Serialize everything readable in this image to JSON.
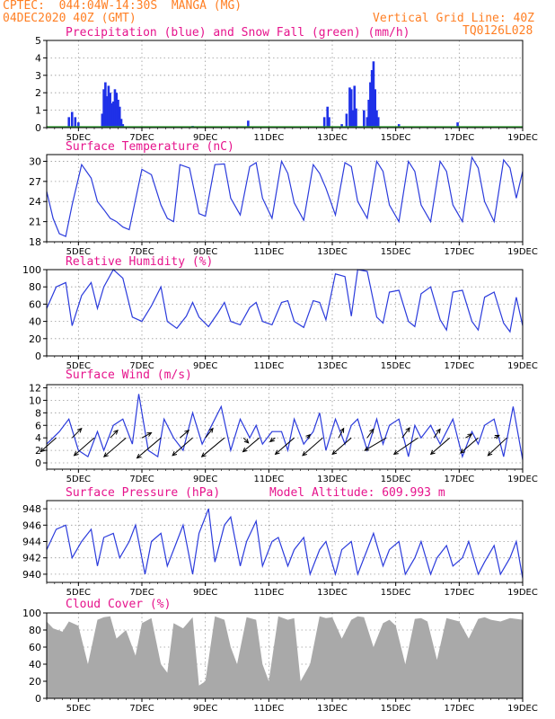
{
  "header": {
    "line1_left": "CPTEC:  044:04W-14:30S  MANGA (MG)",
    "line2_left": "04DEC2020 40Z (GMT)",
    "line2_right": "Vertical Grid Line: 40Z",
    "code": "TQ0126L028"
  },
  "x_axis": {
    "ticks": [
      "5DEC",
      "7DEC",
      "9DEC",
      "11DEC",
      "13DEC",
      "15DEC",
      "17DEC",
      "19DEC"
    ]
  },
  "colors": {
    "line": "#2b3bdc",
    "precip": "#1f31e8",
    "snow": "#2ca02c",
    "title": "#e6138c",
    "header": "#ff7f24",
    "cloud": "#a9a9a9",
    "grid": "#9a9a9a"
  },
  "chart_data": [
    {
      "type": "bar",
      "title": "Precipitation (blue) and Snow Fall (green) (mm/h)",
      "ylim": [
        0,
        5
      ],
      "yticks": [
        0,
        1,
        2,
        3,
        4,
        5
      ],
      "series": [
        {
          "name": "Precipitation",
          "color": "#1f31e8",
          "x": [
            4.7,
            4.8,
            4.9,
            5.0,
            5.75,
            5.8,
            5.85,
            5.9,
            5.95,
            6.0,
            6.05,
            6.1,
            6.15,
            6.2,
            6.25,
            6.3,
            6.35,
            6.4,
            8.6,
            10.35,
            12.75,
            12.85,
            12.9,
            13.3,
            13.45,
            13.55,
            13.6,
            13.65,
            13.7,
            13.75,
            14.0,
            14.1,
            14.15,
            14.2,
            14.25,
            14.3,
            14.35,
            14.4,
            14.45,
            15.1,
            16.95
          ],
          "values": [
            0.6,
            0.9,
            0.6,
            0.3,
            0.8,
            2.2,
            2.6,
            1.8,
            2.4,
            2.0,
            1.4,
            1.5,
            2.2,
            2.0,
            1.6,
            1.2,
            0.5,
            0.2,
            0.1,
            0.4,
            0.6,
            1.2,
            0.6,
            0.2,
            0.8,
            2.3,
            2.2,
            1.0,
            2.4,
            1.1,
            1.0,
            0.6,
            1.6,
            2.6,
            3.3,
            3.8,
            2.2,
            1.0,
            0.6,
            0.2,
            0.3
          ]
        },
        {
          "name": "Snow Fall",
          "color": "#2ca02c",
          "x": [],
          "values": []
        }
      ]
    },
    {
      "type": "line",
      "title": "Surface Temperature (nC)",
      "ylim": [
        18,
        31
      ],
      "yticks": [
        18,
        21,
        24,
        27,
        30
      ],
      "x": [
        4.0,
        4.2,
        4.4,
        4.6,
        4.8,
        5.1,
        5.4,
        5.6,
        5.8,
        6.0,
        6.2,
        6.4,
        6.6,
        7.0,
        7.3,
        7.6,
        7.8,
        8.0,
        8.2,
        8.5,
        8.8,
        9.0,
        9.3,
        9.6,
        9.8,
        10.1,
        10.4,
        10.6,
        10.8,
        11.1,
        11.4,
        11.6,
        11.8,
        12.1,
        12.4,
        12.6,
        12.8,
        13.1,
        13.4,
        13.6,
        13.8,
        14.1,
        14.4,
        14.6,
        14.8,
        15.1,
        15.4,
        15.6,
        15.8,
        16.1,
        16.4,
        16.6,
        16.8,
        17.1,
        17.4,
        17.6,
        17.8,
        18.1,
        18.4,
        18.6,
        18.8,
        19.0
      ],
      "values": [
        25.5,
        21.5,
        19.2,
        18.8,
        23.5,
        29.5,
        27.5,
        24.0,
        22.8,
        21.5,
        21.0,
        20.2,
        19.8,
        28.8,
        28.0,
        23.5,
        21.5,
        21.0,
        29.5,
        29.0,
        22.2,
        21.8,
        29.5,
        29.6,
        24.5,
        22.0,
        29.2,
        29.8,
        24.5,
        21.5,
        30.0,
        28.2,
        23.8,
        21.2,
        29.5,
        28.2,
        26.0,
        22.0,
        29.8,
        29.2,
        24.0,
        21.5,
        30.0,
        28.5,
        23.5,
        21.0,
        30.0,
        28.5,
        23.5,
        21.0,
        30.0,
        28.5,
        23.5,
        21.0,
        30.6,
        29.0,
        24.0,
        21.0,
        30.2,
        29.0,
        24.5,
        28.5
      ]
    },
    {
      "type": "line",
      "title": "Relative Humidity (%)",
      "ylim": [
        0,
        100
      ],
      "yticks": [
        0,
        20,
        40,
        60,
        80,
        100
      ],
      "x": [
        4.0,
        4.3,
        4.6,
        4.8,
        5.1,
        5.4,
        5.6,
        5.8,
        6.1,
        6.4,
        6.7,
        7.0,
        7.3,
        7.6,
        7.8,
        8.1,
        8.4,
        8.6,
        8.8,
        9.1,
        9.4,
        9.6,
        9.8,
        10.1,
        10.4,
        10.6,
        10.8,
        11.1,
        11.4,
        11.6,
        11.8,
        12.1,
        12.4,
        12.6,
        12.8,
        13.1,
        13.4,
        13.6,
        13.8,
        14.1,
        14.4,
        14.6,
        14.8,
        15.1,
        15.4,
        15.6,
        15.8,
        16.1,
        16.4,
        16.6,
        16.8,
        17.1,
        17.4,
        17.6,
        17.8,
        18.1,
        18.4,
        18.6,
        18.8,
        19.0
      ],
      "values": [
        55,
        80,
        85,
        35,
        70,
        85,
        55,
        80,
        100,
        90,
        45,
        40,
        58,
        80,
        40,
        32,
        46,
        62,
        45,
        34,
        50,
        62,
        40,
        36,
        56,
        62,
        40,
        36,
        62,
        64,
        40,
        33,
        64,
        62,
        42,
        95,
        92,
        46,
        100,
        98,
        45,
        38,
        74,
        76,
        40,
        34,
        72,
        80,
        42,
        30,
        74,
        76,
        40,
        30,
        68,
        74,
        38,
        28,
        68,
        35
      ]
    },
    {
      "type": "line",
      "title": "Surface Wind (m/s)",
      "ylim": [
        -1,
        12.5
      ],
      "yticks": [
        0,
        2,
        4,
        6,
        8,
        10,
        12
      ],
      "x": [
        4.0,
        4.4,
        4.7,
        5.0,
        5.3,
        5.6,
        5.8,
        6.1,
        6.4,
        6.7,
        6.9,
        7.2,
        7.5,
        7.7,
        8.0,
        8.3,
        8.6,
        8.9,
        9.2,
        9.5,
        9.8,
        10.1,
        10.4,
        10.6,
        10.8,
        11.1,
        11.4,
        11.6,
        11.8,
        12.1,
        12.4,
        12.6,
        12.8,
        13.1,
        13.4,
        13.6,
        13.8,
        14.1,
        14.4,
        14.6,
        14.8,
        15.1,
        15.4,
        15.6,
        15.8,
        16.1,
        16.4,
        16.6,
        16.8,
        17.1,
        17.4,
        17.6,
        17.8,
        18.1,
        18.4,
        18.7,
        19.0
      ],
      "values": [
        3,
        5,
        7,
        2,
        1,
        5,
        2,
        6,
        7,
        3,
        11,
        2,
        1,
        7,
        4,
        2,
        8,
        3,
        6,
        9,
        2,
        7,
        4,
        6,
        3,
        5,
        5,
        2,
        7,
        3,
        5,
        8,
        2,
        7,
        3,
        6,
        7,
        2,
        7,
        3,
        6,
        7,
        1,
        6,
        4,
        6,
        3,
        5,
        7,
        1,
        5,
        3,
        6,
        7,
        1,
        9,
        0.5
      ],
      "arrows": [
        {
          "x": 4.3,
          "u": -2.5,
          "v": -2.2
        },
        {
          "x": 4.8,
          "u": 1.5,
          "v": 1.5
        },
        {
          "x": 5.5,
          "u": -3.2,
          "v": -2.8
        },
        {
          "x": 6.0,
          "u": 1.2,
          "v": 1.2
        },
        {
          "x": 6.5,
          "u": -3.5,
          "v": -3.0
        },
        {
          "x": 7.0,
          "u": 1.5,
          "v": 0.8
        },
        {
          "x": 7.6,
          "u": -3.8,
          "v": -3.2
        },
        {
          "x": 8.2,
          "u": 1.4,
          "v": 1.2
        },
        {
          "x": 8.6,
          "u": -3.2,
          "v": -2.8
        },
        {
          "x": 9.0,
          "u": 1.2,
          "v": 1.5
        },
        {
          "x": 9.6,
          "u": -3.6,
          "v": -3.0
        },
        {
          "x": 10.2,
          "u": 0.8,
          "v": -0.8
        },
        {
          "x": 10.7,
          "u": -2.6,
          "v": -2.2
        },
        {
          "x": 11.2,
          "u": -0.8,
          "v": -0.6
        },
        {
          "x": 11.8,
          "u": -3.0,
          "v": -2.6
        },
        {
          "x": 12.2,
          "u": 0.5,
          "v": 0.5
        },
        {
          "x": 12.7,
          "u": -3.2,
          "v": -2.8
        },
        {
          "x": 13.2,
          "u": 0.8,
          "v": 1.5
        },
        {
          "x": 13.6,
          "u": -3.0,
          "v": -2.6
        },
        {
          "x": 14.1,
          "u": 1.0,
          "v": 1.4
        },
        {
          "x": 14.7,
          "u": -3.4,
          "v": -2.0
        },
        {
          "x": 15.2,
          "u": 1.2,
          "v": 1.6
        },
        {
          "x": 15.7,
          "u": -3.8,
          "v": -2.6
        },
        {
          "x": 16.2,
          "u": 1.0,
          "v": 1.4
        },
        {
          "x": 16.7,
          "u": -3.0,
          "v": -2.6
        },
        {
          "x": 17.2,
          "u": 1.0,
          "v": 0.6
        },
        {
          "x": 17.6,
          "u": -2.8,
          "v": -2.4
        },
        {
          "x": 18.1,
          "u": 0.8,
          "v": 0.4
        },
        {
          "x": 18.5,
          "u": -3.0,
          "v": -2.8
        }
      ]
    },
    {
      "type": "line",
      "title": "Surface Pressure (hPa)",
      "annotation": "Model Altitude: 609.993 m",
      "ylim": [
        939,
        949
      ],
      "yticks": [
        940,
        942,
        944,
        946,
        948
      ],
      "x": [
        4.0,
        4.3,
        4.6,
        4.8,
        5.1,
        5.4,
        5.6,
        5.8,
        6.1,
        6.3,
        6.6,
        6.8,
        7.1,
        7.3,
        7.6,
        7.8,
        8.1,
        8.3,
        8.6,
        8.8,
        9.1,
        9.3,
        9.6,
        9.8,
        10.1,
        10.3,
        10.6,
        10.8,
        11.1,
        11.3,
        11.6,
        11.8,
        12.1,
        12.3,
        12.6,
        12.8,
        13.1,
        13.3,
        13.6,
        13.8,
        14.1,
        14.3,
        14.6,
        14.8,
        15.1,
        15.3,
        15.6,
        15.8,
        16.1,
        16.3,
        16.6,
        16.8,
        17.1,
        17.3,
        17.6,
        17.8,
        18.1,
        18.3,
        18.6,
        18.8,
        19.0
      ],
      "values": [
        943,
        945.5,
        946,
        942,
        944,
        945.5,
        941,
        944.5,
        945,
        942,
        944,
        946,
        940,
        944,
        945,
        941,
        944,
        946,
        940,
        945,
        948,
        941.5,
        946,
        947,
        941,
        944,
        946.5,
        941,
        944,
        944.5,
        941,
        943,
        944.5,
        940,
        943,
        944,
        940,
        943,
        944,
        940,
        943,
        945,
        941,
        943,
        944,
        940,
        942,
        944,
        940,
        942,
        943.5,
        941,
        942,
        944,
        940,
        941.5,
        943.5,
        940,
        942,
        944,
        939.5
      ]
    },
    {
      "type": "area",
      "title": "Cloud Cover (%)",
      "ylim": [
        0,
        100
      ],
      "yticks": [
        0,
        20,
        40,
        60,
        80,
        100
      ],
      "x": [
        4.0,
        4.2,
        4.5,
        4.7,
        5.0,
        5.3,
        5.6,
        5.8,
        6.0,
        6.2,
        6.5,
        6.8,
        7.0,
        7.3,
        7.6,
        7.8,
        8.0,
        8.3,
        8.6,
        8.8,
        9.0,
        9.3,
        9.6,
        9.8,
        10.0,
        10.3,
        10.6,
        10.8,
        11.0,
        11.3,
        11.6,
        11.8,
        12.0,
        12.3,
        12.6,
        12.8,
        13.0,
        13.3,
        13.6,
        13.8,
        14.0,
        14.3,
        14.6,
        14.8,
        15.0,
        15.3,
        15.6,
        15.8,
        16.0,
        16.3,
        16.6,
        16.8,
        17.0,
        17.3,
        17.6,
        17.8,
        18.0,
        18.3,
        18.6,
        18.8,
        19.0
      ],
      "values": [
        90,
        82,
        78,
        90,
        85,
        40,
        92,
        95,
        96,
        70,
        80,
        50,
        88,
        94,
        40,
        30,
        88,
        82,
        95,
        15,
        20,
        96,
        92,
        60,
        40,
        95,
        92,
        40,
        20,
        96,
        92,
        94,
        20,
        40,
        96,
        94,
        95,
        70,
        92,
        96,
        95,
        60,
        88,
        92,
        85,
        40,
        93,
        94,
        90,
        45,
        94,
        92,
        90,
        70,
        93,
        95,
        92,
        90,
        94,
        93,
        92
      ]
    }
  ]
}
